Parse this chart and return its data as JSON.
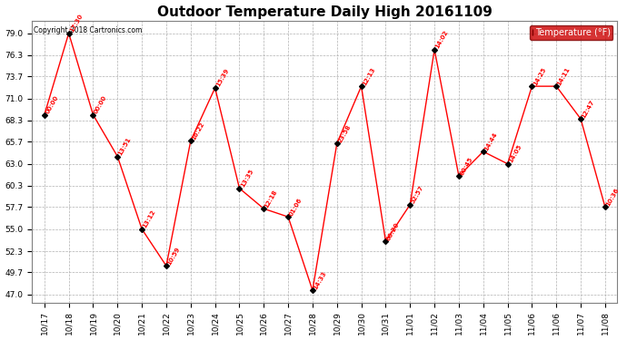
{
  "title": "Outdoor Temperature Daily High 20161109",
  "copyright": "Copyright 2018 Cartronics.com",
  "legend_label": "Temperature (°F)",
  "x_labels": [
    "10/17",
    "10/18",
    "10/19",
    "10/20",
    "10/21",
    "10/22",
    "10/23",
    "10/24",
    "10/25",
    "10/26",
    "10/27",
    "10/28",
    "10/29",
    "10/30",
    "10/31",
    "11/01",
    "11/02",
    "11/03",
    "11/04",
    "11/05",
    "11/06",
    "11/06",
    "11/07",
    "11/08"
  ],
  "temps": [
    69.0,
    79.0,
    69.0,
    63.9,
    55.0,
    50.5,
    65.8,
    72.3,
    60.0,
    57.5,
    56.5,
    47.5,
    65.5,
    72.5,
    53.5,
    58.0,
    77.0,
    61.5,
    64.5,
    63.0,
    72.5,
    72.5,
    68.5,
    57.7
  ],
  "time_labels": [
    "00:00",
    "17:30",
    "00:00",
    "13:51",
    "13:12",
    "10:59",
    "16:22",
    "15:39",
    "13:35",
    "12:18",
    "01:06",
    "14:33",
    "23:58",
    "12:13",
    "00:20",
    "52:57",
    "14:02",
    "00:45",
    "14:44",
    "14:05",
    "14:25",
    "14:11",
    "12:47",
    "10:36"
  ],
  "line_color": "#ff0000",
  "marker_color": "#000000",
  "bg_color": "#ffffff",
  "grid_color": "#b0b0b0",
  "yticks": [
    47.0,
    49.7,
    52.3,
    55.0,
    57.7,
    60.3,
    63.0,
    65.7,
    68.3,
    71.0,
    73.7,
    76.3,
    79.0
  ],
  "ylim": [
    46.0,
    80.5
  ],
  "xlim": [
    -0.5,
    23.5
  ],
  "title_fontsize": 11,
  "tick_fontsize": 6.5,
  "time_label_fontsize": 5.0,
  "legend_bg": "#cc0000",
  "legend_text_color": "#ffffff",
  "figwidth": 6.9,
  "figheight": 3.75,
  "dpi": 100
}
